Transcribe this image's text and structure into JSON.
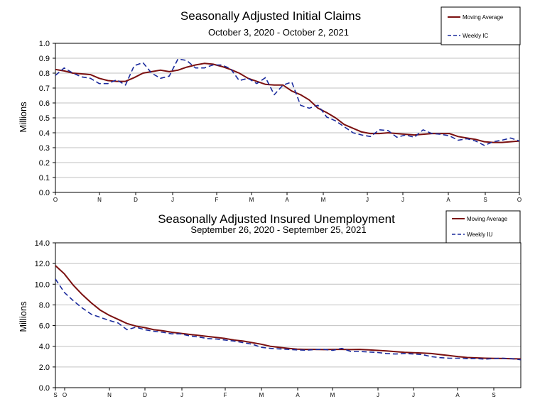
{
  "colors": {
    "moving_average": "#7b1010",
    "weekly": "#1a2a9c",
    "grid": "#c0c0c0"
  },
  "chart_data": [
    {
      "type": "line",
      "title": "Seasonally Adjusted Initial Claims",
      "subtitle": "October 3, 2020 - October 2, 2021",
      "xlabel": "",
      "ylabel": "Millions",
      "ylim": [
        0.0,
        1.0
      ],
      "yticks": [
        "0.0",
        "0.1",
        "0.2",
        "0.3",
        "0.4",
        "0.5",
        "0.6",
        "0.7",
        "0.8",
        "0.9",
        "1.0"
      ],
      "xtick_labels": [
        "O",
        "N",
        "D",
        "J",
        "F",
        "M",
        "A",
        "M",
        "J",
        "J",
        "A",
        "S",
        "O"
      ],
      "legend": "top-right",
      "series": [
        {
          "name": "Moving Average",
          "style": "solid",
          "values": [
            0.825,
            0.815,
            0.8,
            0.795,
            0.79,
            0.765,
            0.75,
            0.745,
            0.745,
            0.77,
            0.8,
            0.81,
            0.82,
            0.81,
            0.82,
            0.84,
            0.855,
            0.865,
            0.86,
            0.845,
            0.825,
            0.8,
            0.765,
            0.745,
            0.725,
            0.72,
            0.72,
            0.68,
            0.655,
            0.62,
            0.565,
            0.535,
            0.5,
            0.455,
            0.43,
            0.405,
            0.395,
            0.395,
            0.4,
            0.395,
            0.39,
            0.385,
            0.39,
            0.395,
            0.395,
            0.395,
            0.375,
            0.365,
            0.355,
            0.34,
            0.335,
            0.335,
            0.34,
            0.345
          ]
        },
        {
          "name": "Weekly IC",
          "style": "dashed",
          "values": [
            0.785,
            0.835,
            0.8,
            0.775,
            0.765,
            0.73,
            0.73,
            0.755,
            0.72,
            0.85,
            0.87,
            0.8,
            0.765,
            0.78,
            0.895,
            0.885,
            0.835,
            0.835,
            0.855,
            0.855,
            0.83,
            0.75,
            0.765,
            0.73,
            0.77,
            0.655,
            0.72,
            0.74,
            0.585,
            0.565,
            0.585,
            0.505,
            0.48,
            0.44,
            0.4,
            0.385,
            0.375,
            0.42,
            0.415,
            0.37,
            0.385,
            0.37,
            0.42,
            0.395,
            0.39,
            0.38,
            0.35,
            0.36,
            0.345,
            0.315,
            0.34,
            0.35,
            0.365,
            0.345
          ]
        }
      ]
    },
    {
      "type": "line",
      "title": "Seasonally Adjusted Insured Unemployment",
      "subtitle": "September 26, 2020 - September 25, 2021",
      "xlabel": "",
      "ylabel": "Millions",
      "ylim": [
        0.0,
        14.0
      ],
      "yticks": [
        "0.0",
        "2.0",
        "4.0",
        "6.0",
        "8.0",
        "10.0",
        "12.0",
        "14.0"
      ],
      "xtick_labels": [
        "S",
        "O",
        "N",
        "D",
        "J",
        "F",
        "M",
        "A",
        "M",
        "J",
        "J",
        "A",
        "S"
      ],
      "legend": "top-right",
      "series": [
        {
          "name": "Moving Average",
          "style": "solid",
          "values": [
            11.8,
            11.0,
            9.9,
            9.0,
            8.2,
            7.5,
            7.0,
            6.6,
            6.2,
            5.95,
            5.8,
            5.6,
            5.5,
            5.35,
            5.25,
            5.15,
            5.05,
            4.95,
            4.85,
            4.75,
            4.6,
            4.5,
            4.35,
            4.2,
            4.0,
            3.9,
            3.8,
            3.72,
            3.7,
            3.7,
            3.68,
            3.7,
            3.7,
            3.68,
            3.7,
            3.65,
            3.6,
            3.55,
            3.48,
            3.42,
            3.38,
            3.35,
            3.3,
            3.2,
            3.1,
            3.0,
            2.92,
            2.88,
            2.85,
            2.83,
            2.82,
            2.8,
            2.78
          ]
        },
        {
          "name": "Weekly IU",
          "style": "dashed",
          "values": [
            10.5,
            9.2,
            8.4,
            7.7,
            7.1,
            6.8,
            6.5,
            6.25,
            5.6,
            5.85,
            5.6,
            5.45,
            5.35,
            5.2,
            5.2,
            5.0,
            4.9,
            4.75,
            4.7,
            4.6,
            4.5,
            4.35,
            4.2,
            3.9,
            3.8,
            3.75,
            3.7,
            3.65,
            3.62,
            3.68,
            3.7,
            3.6,
            3.8,
            3.5,
            3.5,
            3.45,
            3.4,
            3.3,
            3.25,
            3.3,
            3.25,
            3.2,
            3.0,
            2.9,
            2.85,
            2.85,
            2.8,
            2.82,
            2.75,
            2.82,
            2.85,
            2.8,
            2.7
          ]
        }
      ]
    }
  ]
}
